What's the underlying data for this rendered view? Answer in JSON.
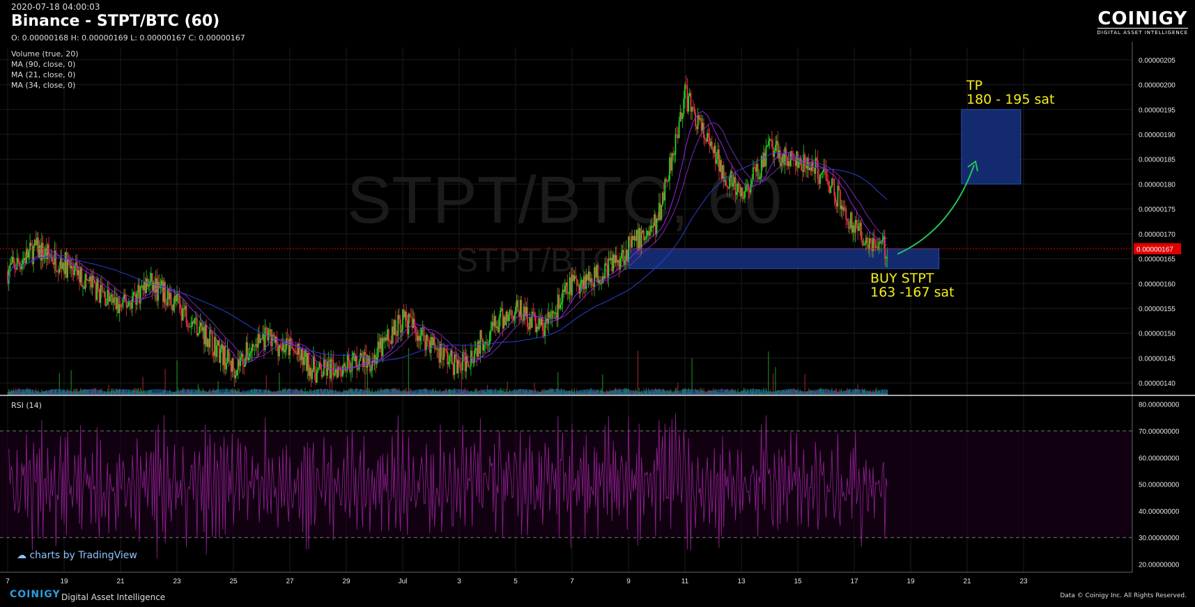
{
  "header": {
    "timestamp": "2020-07-18 04:00:03",
    "title": "Binance - STPT/BTC (60)",
    "ohlc": "O: 0.00000168 H: 0.00000169 L: 0.00000167 C: 0.00000167"
  },
  "indicators": [
    "Volume (true, 20)",
    "MA (90, close, 0)",
    "MA (21, close, 0)",
    "MA (34, close, 0)"
  ],
  "rsi_label": "RSI (14)",
  "brand": {
    "name": "COINIGY",
    "tagline": "DIGITAL ASSET INTELLIGENCE"
  },
  "watermark": {
    "main": "STPT/BTC, 60",
    "sub": "STPT/BTC"
  },
  "annotations": {
    "tp_line1": "TP",
    "tp_line2": "180 - 195 sat",
    "buy_line1": "BUY STPT",
    "buy_line2": "163 -167 sat"
  },
  "tradingview": "charts by TradingView",
  "footer": {
    "brand": "COINIGY",
    "tagline": "Digital Asset Intelligence",
    "credit": "Data © Coinigy Inc.  All Rights Reserved."
  },
  "colors": {
    "up": "#26d726",
    "down": "#f23645",
    "ma_fast": "#a020f0",
    "ma_slow": "#2a3fd6",
    "rsi": "#8a1f8a",
    "box": "#15307a",
    "annotation": "#f7ef1a",
    "arrow": "#22c55e",
    "last_price": "#e00000"
  },
  "chart_data": {
    "type": "candlestick",
    "exchange": "Binance",
    "pair": "STPT/BTC",
    "interval": "60",
    "last_price": "0.00000167",
    "price_axis": {
      "ticks": [
        "0.00000140",
        "0.00000145",
        "0.00000150",
        "0.00000155",
        "0.00000160",
        "0.00000165",
        "0.00000170",
        "0.00000175",
        "0.00000180",
        "0.00000185",
        "0.00000190",
        "0.00000195",
        "0.00000200",
        "0.00000205"
      ],
      "range": [
        1.375e-06,
        2.075e-06
      ]
    },
    "time_axis": {
      "ticks": [
        "7",
        "19",
        "21",
        "23",
        "25",
        "27",
        "29",
        "Jul",
        "3",
        "5",
        "7",
        "9",
        "11",
        "13",
        "15",
        "17",
        "19",
        "21",
        "23"
      ]
    },
    "price_path_keypoints": [
      {
        "date": "Jun 17",
        "close": 1.625e-06
      },
      {
        "date": "Jun 18",
        "close": 1.67e-06
      },
      {
        "date": "Jun 19",
        "close": 1.64e-06
      },
      {
        "date": "Jun 21",
        "close": 1.55e-06
      },
      {
        "date": "Jun 22",
        "close": 1.6e-06
      },
      {
        "date": "Jun 23",
        "close": 1.56e-06
      },
      {
        "date": "Jun 24",
        "close": 1.5e-06
      },
      {
        "date": "Jun 25",
        "close": 1.43e-06
      },
      {
        "date": "Jun 26",
        "close": 1.49e-06
      },
      {
        "date": "Jun 27",
        "close": 1.47e-06
      },
      {
        "date": "Jun 28",
        "close": 1.42e-06
      },
      {
        "date": "Jun 29",
        "close": 1.44e-06
      },
      {
        "date": "Jun 30",
        "close": 1.45e-06
      },
      {
        "date": "Jul 1",
        "close": 1.53e-06
      },
      {
        "date": "Jul 2",
        "close": 1.48e-06
      },
      {
        "date": "Jul 3",
        "close": 1.43e-06
      },
      {
        "date": "Jul 4",
        "close": 1.5e-06
      },
      {
        "date": "Jul 5",
        "close": 1.55e-06
      },
      {
        "date": "Jul 6",
        "close": 1.51e-06
      },
      {
        "date": "Jul 7",
        "close": 1.6e-06
      },
      {
        "date": "Jul 8",
        "close": 1.62e-06
      },
      {
        "date": "Jul 9",
        "close": 1.67e-06
      },
      {
        "date": "Jul 10",
        "close": 1.72e-06
      },
      {
        "date": "Jul 11",
        "close": 1.98e-06
      },
      {
        "date": "Jul 12",
        "close": 1.86e-06
      },
      {
        "date": "Jul 13",
        "close": 1.77e-06
      },
      {
        "date": "Jul 14",
        "close": 1.87e-06
      },
      {
        "date": "Jul 15",
        "close": 1.84e-06
      },
      {
        "date": "Jul 16",
        "close": 1.82e-06
      },
      {
        "date": "Jul 17",
        "close": 1.71e-06
      },
      {
        "date": "Jul 18",
        "close": 1.67e-06
      }
    ],
    "rsi": {
      "axis_ticks": [
        "20.00000000",
        "30.00000000",
        "40.00000000",
        "50.00000000",
        "60.00000000",
        "70.00000000",
        "80.00000000"
      ],
      "range": [
        17,
        82
      ],
      "overbought": 70,
      "oversold": 30
    },
    "zones": [
      {
        "label": "BUY STPT",
        "from_date": "Jul 9",
        "to_date": "Jul 20",
        "low": 1.63e-06,
        "high": 1.67e-06
      },
      {
        "label": "TP",
        "from_date": "Jul 20.8",
        "to_date": "Jul 22.9",
        "low": 1.8e-06,
        "high": 1.95e-06
      }
    ]
  }
}
